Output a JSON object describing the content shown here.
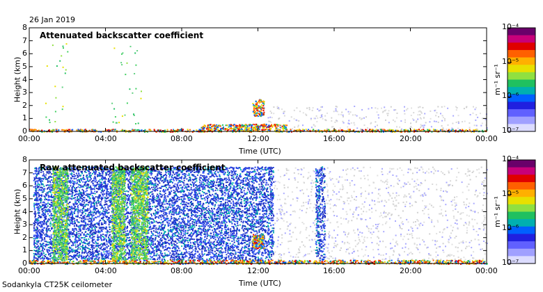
{
  "date_label": "26 Jan 2019",
  "footer_label": "Sodankyla CT25K ceilometer",
  "colorbar": {
    "unit_label": "m⁻¹ sr⁻¹",
    "tick_labels": [
      "10⁻⁴",
      "10⁻⁵",
      "10⁻⁶",
      "10⁻⁷"
    ],
    "colors": [
      "#6a006a",
      "#c8007a",
      "#e00000",
      "#ff6000",
      "#ffb000",
      "#e8e000",
      "#90e040",
      "#20c060",
      "#00b0b0",
      "#0060ff",
      "#2020e0",
      "#6060ff",
      "#a0a0ff",
      "#dcdcff"
    ]
  },
  "chart_data": [
    {
      "type": "heatmap",
      "title": "Attenuated backscatter coefficient",
      "xlabel": "Time (UTC)",
      "ylabel": "Height (km)",
      "x_ticks": [
        "00:00",
        "04:00",
        "08:00",
        "12:00",
        "16:00",
        "20:00",
        "00:00"
      ],
      "y_ticks": [
        "0",
        "1",
        "2",
        "3",
        "4",
        "5",
        "6",
        "7",
        "8"
      ],
      "xlim_hours": [
        0,
        24
      ],
      "ylim_km": [
        0,
        8
      ],
      "color_scale": "log",
      "clim": [
        1e-07,
        0.0001
      ],
      "features": [
        {
          "kind": "surface_layer",
          "t0": 0,
          "t1": 24,
          "h0": 0,
          "h1": 0.2,
          "level": "high"
        },
        {
          "kind": "sparse_precip",
          "t0": 0.8,
          "t1": 2.0,
          "h0": 0.5,
          "h1": 6.9,
          "level": "mid"
        },
        {
          "kind": "sparse_precip",
          "t0": 4.3,
          "t1": 5.9,
          "h0": 0.5,
          "h1": 6.9,
          "level": "mid"
        },
        {
          "kind": "cloud",
          "t0": 11.7,
          "t1": 12.3,
          "h0": 1.2,
          "h1": 2.5,
          "level": "high"
        },
        {
          "kind": "low_cloud",
          "t0": 9.0,
          "t1": 13.5,
          "h0": 0.2,
          "h1": 0.6,
          "level": "high"
        },
        {
          "kind": "noise",
          "t0": 12.5,
          "t1": 24,
          "h0": 0.2,
          "h1": 2.0,
          "level": "very_low"
        }
      ]
    },
    {
      "type": "heatmap",
      "title": "Raw attenuated backscatter coefficient",
      "xlabel": "Time (UTC)",
      "ylabel": "Height (km)",
      "x_ticks": [
        "00:00",
        "04:00",
        "08:00",
        "12:00",
        "16:00",
        "20:00",
        "00:00"
      ],
      "y_ticks": [
        "0",
        "1",
        "2",
        "3",
        "4",
        "5",
        "6",
        "7",
        "8"
      ],
      "xlim_hours": [
        0,
        24
      ],
      "ylim_km": [
        0,
        8
      ],
      "color_scale": "log",
      "clim": [
        1e-07,
        0.0001
      ],
      "features": [
        {
          "kind": "noise",
          "t0": 0.2,
          "t1": 9.3,
          "h0": 0.3,
          "h1": 7.5,
          "level": "low"
        },
        {
          "kind": "precip",
          "t0": 1.2,
          "t1": 2.0,
          "h0": 0.3,
          "h1": 7.5,
          "level": "mid"
        },
        {
          "kind": "precip",
          "t0": 4.3,
          "t1": 5.0,
          "h0": 0.3,
          "h1": 7.5,
          "level": "mid"
        },
        {
          "kind": "precip",
          "t0": 5.3,
          "t1": 6.2,
          "h0": 0.3,
          "h1": 7.5,
          "level": "mid"
        },
        {
          "kind": "noise",
          "t0": 9.3,
          "t1": 12.8,
          "h0": 0.3,
          "h1": 7.5,
          "level": "low"
        },
        {
          "kind": "cloud",
          "t0": 11.7,
          "t1": 12.3,
          "h0": 1.2,
          "h1": 2.3,
          "level": "high"
        },
        {
          "kind": "noise",
          "t0": 12.8,
          "t1": 15.5,
          "h0": 0.3,
          "h1": 7.5,
          "level": "very_low"
        },
        {
          "kind": "noise",
          "t0": 15.0,
          "t1": 15.5,
          "h0": 0.3,
          "h1": 7.5,
          "level": "low"
        },
        {
          "kind": "noise",
          "t0": 15.5,
          "t1": 24,
          "h0": 0.3,
          "h1": 7.5,
          "level": "very_low"
        },
        {
          "kind": "surface_layer",
          "t0": 0,
          "t1": 24,
          "h0": 0,
          "h1": 0.3,
          "level": "high"
        }
      ]
    }
  ]
}
